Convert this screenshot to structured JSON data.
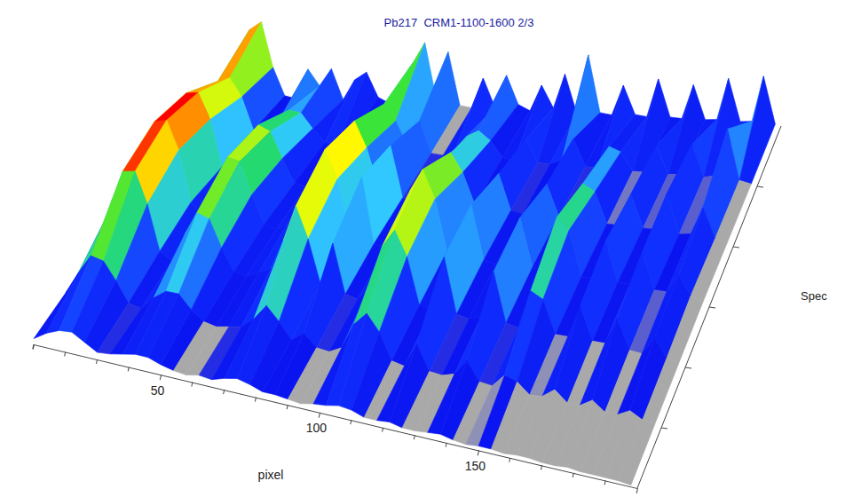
{
  "chart_data": {
    "type": "surface",
    "title": "Pb217  CRM1-1100-1600 2/3",
    "x_label": "pixel",
    "y_label": "Spec",
    "x": [
      10,
      14,
      18,
      22,
      26,
      30,
      34,
      38,
      42,
      46,
      50,
      54,
      58,
      62,
      66,
      70,
      74,
      78,
      82,
      86,
      90,
      94,
      98,
      102,
      106,
      110,
      114,
      118,
      122,
      126,
      130,
      134,
      138,
      142,
      146,
      150,
      154,
      158,
      162,
      166,
      170,
      174,
      178,
      182,
      186,
      190,
      194,
      198
    ],
    "y": [
      0,
      1,
      2,
      3,
      4,
      5,
      6
    ],
    "z": [
      [
        4,
        10,
        14,
        15,
        10,
        5,
        6,
        8,
        10,
        10,
        7,
        5,
        4,
        6,
        5,
        8,
        10,
        8,
        5,
        5,
        4,
        3,
        5,
        6,
        8,
        7,
        4,
        4,
        5,
        3,
        3,
        4,
        5,
        3,
        2,
        3,
        3,
        2,
        3,
        3,
        2,
        2,
        3,
        2,
        2,
        2,
        2,
        1
      ],
      [
        8,
        25,
        40,
        38,
        25,
        10,
        8,
        18,
        25,
        25,
        15,
        8,
        6,
        8,
        10,
        18,
        30,
        20,
        8,
        15,
        6,
        5,
        10,
        30,
        40,
        28,
        8,
        6,
        25,
        6,
        5,
        8,
        20,
        6,
        5,
        15,
        12,
        4,
        5,
        12,
        4,
        4,
        10,
        3,
        3,
        8,
        3,
        2
      ],
      [
        12,
        45,
        78,
        80,
        55,
        18,
        12,
        35,
        55,
        52,
        30,
        12,
        10,
        15,
        20,
        45,
        75,
        50,
        15,
        50,
        10,
        8,
        20,
        55,
        70,
        50,
        12,
        10,
        55,
        10,
        8,
        12,
        50,
        10,
        8,
        40,
        35,
        8,
        8,
        35,
        8,
        8,
        30,
        6,
        5,
        20,
        5,
        3
      ],
      [
        15,
        55,
        92,
        95,
        70,
        25,
        15,
        45,
        70,
        68,
        40,
        15,
        12,
        20,
        25,
        60,
        90,
        65,
        20,
        70,
        12,
        10,
        25,
        65,
        85,
        60,
        15,
        12,
        60,
        12,
        10,
        15,
        55,
        12,
        10,
        60,
        50,
        10,
        10,
        45,
        10,
        10,
        40,
        8,
        8,
        25,
        8,
        4
      ],
      [
        12,
        50,
        88,
        90,
        65,
        20,
        12,
        40,
        65,
        60,
        35,
        12,
        10,
        18,
        20,
        55,
        80,
        55,
        18,
        60,
        10,
        8,
        20,
        45,
        60,
        42,
        12,
        10,
        45,
        10,
        8,
        12,
        40,
        10,
        8,
        45,
        38,
        8,
        8,
        40,
        8,
        8,
        45,
        6,
        8,
        35,
        6,
        3
      ],
      [
        8,
        40,
        65,
        70,
        50,
        15,
        8,
        25,
        40,
        38,
        22,
        8,
        6,
        12,
        14,
        35,
        55,
        38,
        12,
        40,
        6,
        5,
        12,
        28,
        35,
        25,
        8,
        6,
        30,
        6,
        5,
        10,
        35,
        6,
        5,
        30,
        25,
        5,
        5,
        35,
        5,
        6,
        40,
        5,
        8,
        60,
        5,
        2
      ],
      [
        2,
        30,
        85,
        95,
        40,
        6,
        3,
        40,
        20,
        42,
        5,
        30,
        40,
        10,
        3,
        8,
        55,
        80,
        10,
        70,
        5,
        3,
        40,
        5,
        45,
        10,
        3,
        35,
        8,
        50,
        3,
        75,
        5,
        3,
        40,
        5,
        3,
        50,
        4,
        3,
        45,
        3,
        4,
        55,
        3,
        4,
        60,
        2
      ]
    ],
    "xlim": [
      10,
      200
    ],
    "xticks": [
      50,
      100,
      150
    ],
    "x_minor_ticks": [
      10,
      20,
      30,
      40,
      60,
      70,
      80,
      90,
      110,
      120,
      130,
      140,
      160,
      170,
      180,
      190
    ],
    "ylim": [
      0,
      6
    ],
    "y_minor_ticks": [
      1,
      2,
      3,
      4,
      5
    ],
    "zlim": [
      0,
      100
    ],
    "tick_labels": "x"
  }
}
